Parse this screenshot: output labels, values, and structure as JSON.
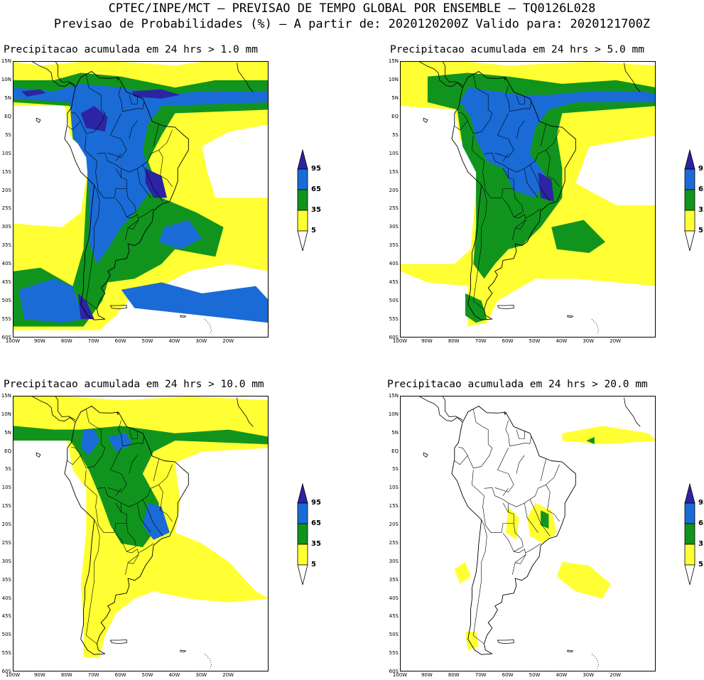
{
  "header": {
    "line1": "CPTEC/INPE/MCT – PREVISAO DE TEMPO GLOBAL POR ENSEMBLE – TQ0126L028",
    "line2": "Previsao de Probabilidades (%) –  A partir de: 2020120200Z  Valido para: 2020121700Z"
  },
  "colors": {
    "c5": "#ffff33",
    "c35": "#11941e",
    "c65": "#1a6bd6",
    "c95": "#2c24a3",
    "coast": "#000000",
    "frame": "#000000"
  },
  "colorbar": {
    "labels": [
      "95",
      "65",
      "35",
      "5"
    ]
  },
  "latitude_labels": [
    "15N",
    "10N",
    "5N",
    "EQ",
    "5S",
    "10S",
    "15S",
    "20S",
    "25S",
    "30S",
    "35S",
    "40S",
    "45S",
    "50S",
    "55S",
    "60S"
  ],
  "longitude_labels": [
    "100W",
    "90W",
    "80W",
    "70W",
    "60W",
    "50W",
    "40W",
    "30W",
    "20W"
  ],
  "panels": [
    {
      "title": "Precipitacao acumulada em 24 hrs > 1.0 mm"
    },
    {
      "title": "Precipitacao acumulada em 24 hrs > 5.0 mm"
    },
    {
      "title": "Precipitacao acumulada em 24 hrs > 10.0 mm"
    },
    {
      "title": "Precipitacao acumulada em 24 hrs > 20.0 mm"
    }
  ]
}
